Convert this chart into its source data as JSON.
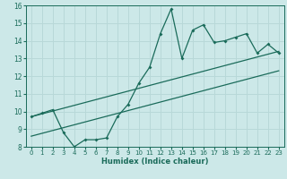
{
  "xlabel": "Humidex (Indice chaleur)",
  "bg_color": "#cce8e8",
  "grid_color": "#b8d8d8",
  "line_color": "#1a6b5a",
  "xlim": [
    -0.5,
    23.5
  ],
  "ylim": [
    8,
    16
  ],
  "xticks": [
    0,
    1,
    2,
    3,
    4,
    5,
    6,
    7,
    8,
    9,
    10,
    11,
    12,
    13,
    14,
    15,
    16,
    17,
    18,
    19,
    20,
    21,
    22,
    23
  ],
  "yticks": [
    8,
    9,
    10,
    11,
    12,
    13,
    14,
    15,
    16
  ],
  "line_x": [
    0,
    1,
    2,
    3,
    4,
    5,
    6,
    7,
    8,
    9,
    10,
    11,
    12,
    13,
    14,
    15,
    16,
    17,
    18,
    19,
    20,
    21,
    22,
    23
  ],
  "line_y": [
    9.7,
    9.9,
    10.1,
    8.8,
    8.0,
    8.4,
    8.4,
    8.5,
    9.7,
    10.4,
    11.6,
    12.5,
    14.4,
    15.8,
    13.0,
    14.6,
    14.9,
    13.9,
    14.0,
    14.2,
    14.4,
    13.3,
    13.8,
    13.3
  ],
  "trend1_x": [
    0,
    23
  ],
  "trend1_y": [
    9.7,
    13.4
  ],
  "trend2_x": [
    0,
    23
  ],
  "trend2_y": [
    8.6,
    12.3
  ]
}
